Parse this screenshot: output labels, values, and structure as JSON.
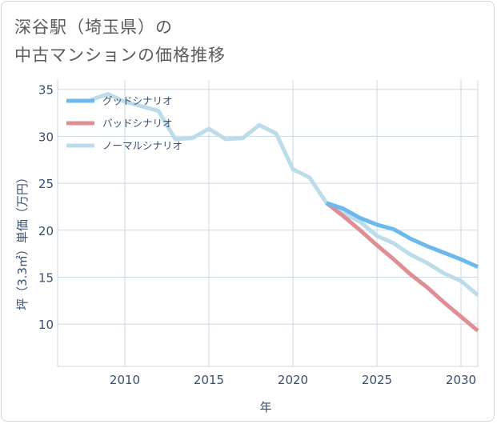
{
  "title": {
    "line1": "深谷駅（埼玉県）の",
    "line2": "中古マンションの価格推移"
  },
  "colors": {
    "good": "#6cb9ef",
    "bad": "#df8f94",
    "normal": "#bcdcea",
    "grid": "#c9d9e6",
    "tick_text": "#3a4f6e"
  },
  "chart_data": {
    "type": "line",
    "xlabel": "年",
    "ylabel": "坪（3.3㎡）単価（万円）",
    "xlim": [
      2006,
      2031
    ],
    "ylim": [
      5.5,
      36
    ],
    "xticks": [
      2010,
      2015,
      2020,
      2025,
      2030
    ],
    "yticks": [
      10,
      15,
      20,
      25,
      30,
      35
    ],
    "legend_position": "top-left",
    "series": [
      {
        "name": "グッドシナリオ",
        "color_key": "good",
        "x": [
          2022,
          2023,
          2024,
          2025,
          2026,
          2027,
          2028,
          2029,
          2030,
          2031
        ],
        "y": [
          22.9,
          22.3,
          21.3,
          20.6,
          20.1,
          19.1,
          18.3,
          17.6,
          16.9,
          16.1
        ]
      },
      {
        "name": "バッドシナリオ",
        "color_key": "bad",
        "x": [
          2022,
          2023,
          2024,
          2025,
          2026,
          2027,
          2028,
          2029,
          2030,
          2031
        ],
        "y": [
          22.9,
          21.5,
          20.0,
          18.4,
          16.9,
          15.3,
          13.9,
          12.3,
          10.8,
          9.3
        ]
      },
      {
        "name": "ノーマルシナリオ",
        "color_key": "normal",
        "x": [
          2008,
          2009,
          2010,
          2011,
          2012,
          2013,
          2014,
          2015,
          2016,
          2017,
          2018,
          2019,
          2020,
          2021,
          2022,
          2023,
          2024,
          2025,
          2026,
          2027,
          2028,
          2029,
          2030,
          2031
        ],
        "y": [
          33.9,
          34.5,
          33.7,
          33.2,
          32.7,
          29.7,
          29.8,
          30.8,
          29.7,
          29.8,
          31.2,
          30.3,
          26.5,
          25.6,
          22.9,
          21.8,
          20.9,
          19.4,
          18.6,
          17.4,
          16.5,
          15.4,
          14.6,
          13.1
        ]
      }
    ]
  }
}
